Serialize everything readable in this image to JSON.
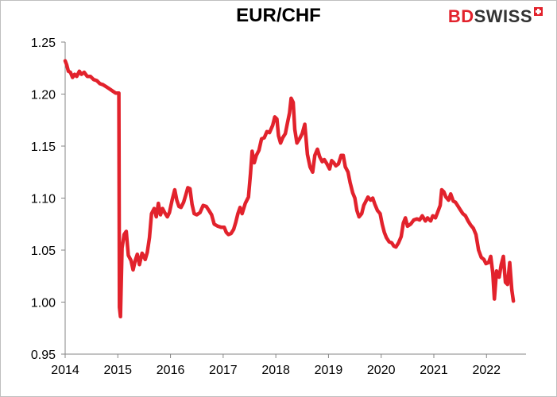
{
  "chart_data": {
    "type": "line",
    "title": "EUR/CHF",
    "xlabel": "",
    "ylabel": "",
    "xlim": [
      2014.0,
      2022.75
    ],
    "ylim": [
      0.95,
      1.25
    ],
    "yticks": [
      "0.95",
      "1.00",
      "1.05",
      "1.10",
      "1.15",
      "1.20",
      "1.25"
    ],
    "xticks": [
      "2014",
      "2015",
      "2016",
      "2017",
      "2018",
      "2019",
      "2020",
      "2021",
      "2022"
    ],
    "grid": false,
    "legend": "none",
    "series": [
      {
        "color": "#e2222c",
        "points": [
          [
            2014.0,
            1.232
          ],
          [
            2014.03,
            1.228
          ],
          [
            2014.06,
            1.222
          ],
          [
            2014.1,
            1.221
          ],
          [
            2014.14,
            1.216
          ],
          [
            2014.18,
            1.219
          ],
          [
            2014.22,
            1.217
          ],
          [
            2014.27,
            1.222
          ],
          [
            2014.31,
            1.219
          ],
          [
            2014.36,
            1.221
          ],
          [
            2014.42,
            1.217
          ],
          [
            2014.48,
            1.217
          ],
          [
            2014.54,
            1.214
          ],
          [
            2014.6,
            1.213
          ],
          [
            2014.66,
            1.21
          ],
          [
            2014.72,
            1.209
          ],
          [
            2014.78,
            1.207
          ],
          [
            2014.84,
            1.205
          ],
          [
            2014.9,
            1.203
          ],
          [
            2014.96,
            1.201
          ],
          [
            2015.02,
            1.201
          ],
          [
            2015.03,
            0.995
          ],
          [
            2015.05,
            0.986
          ],
          [
            2015.08,
            1.052
          ],
          [
            2015.12,
            1.065
          ],
          [
            2015.16,
            1.068
          ],
          [
            2015.2,
            1.045
          ],
          [
            2015.25,
            1.04
          ],
          [
            2015.29,
            1.031
          ],
          [
            2015.33,
            1.04
          ],
          [
            2015.37,
            1.046
          ],
          [
            2015.41,
            1.036
          ],
          [
            2015.46,
            1.047
          ],
          [
            2015.52,
            1.041
          ],
          [
            2015.56,
            1.048
          ],
          [
            2015.6,
            1.062
          ],
          [
            2015.64,
            1.085
          ],
          [
            2015.69,
            1.09
          ],
          [
            2015.73,
            1.082
          ],
          [
            2015.77,
            1.095
          ],
          [
            2015.81,
            1.084
          ],
          [
            2015.85,
            1.09
          ],
          [
            2015.89,
            1.086
          ],
          [
            2015.94,
            1.082
          ],
          [
            2015.98,
            1.086
          ],
          [
            2016.03,
            1.098
          ],
          [
            2016.08,
            1.108
          ],
          [
            2016.12,
            1.098
          ],
          [
            2016.16,
            1.092
          ],
          [
            2016.2,
            1.091
          ],
          [
            2016.25,
            1.096
          ],
          [
            2016.29,
            1.103
          ],
          [
            2016.33,
            1.11
          ],
          [
            2016.37,
            1.109
          ],
          [
            2016.41,
            1.094
          ],
          [
            2016.45,
            1.085
          ],
          [
            2016.5,
            1.084
          ],
          [
            2016.56,
            1.086
          ],
          [
            2016.62,
            1.093
          ],
          [
            2016.68,
            1.092
          ],
          [
            2016.73,
            1.088
          ],
          [
            2016.78,
            1.084
          ],
          [
            2016.83,
            1.075
          ],
          [
            2016.9,
            1.073
          ],
          [
            2016.96,
            1.072
          ],
          [
            2017.02,
            1.072
          ],
          [
            2017.06,
            1.067
          ],
          [
            2017.1,
            1.065
          ],
          [
            2017.15,
            1.066
          ],
          [
            2017.2,
            1.07
          ],
          [
            2017.24,
            1.077
          ],
          [
            2017.28,
            1.085
          ],
          [
            2017.32,
            1.091
          ],
          [
            2017.36,
            1.085
          ],
          [
            2017.42,
            1.095
          ],
          [
            2017.48,
            1.101
          ],
          [
            2017.52,
            1.124
          ],
          [
            2017.55,
            1.145
          ],
          [
            2017.59,
            1.134
          ],
          [
            2017.63,
            1.141
          ],
          [
            2017.68,
            1.146
          ],
          [
            2017.73,
            1.157
          ],
          [
            2017.78,
            1.158
          ],
          [
            2017.83,
            1.164
          ],
          [
            2017.88,
            1.163
          ],
          [
            2017.94,
            1.17
          ],
          [
            2017.98,
            1.178
          ],
          [
            2018.02,
            1.176
          ],
          [
            2018.05,
            1.16
          ],
          [
            2018.09,
            1.153
          ],
          [
            2018.13,
            1.158
          ],
          [
            2018.18,
            1.162
          ],
          [
            2018.22,
            1.172
          ],
          [
            2018.26,
            1.182
          ],
          [
            2018.29,
            1.196
          ],
          [
            2018.33,
            1.192
          ],
          [
            2018.36,
            1.166
          ],
          [
            2018.4,
            1.153
          ],
          [
            2018.45,
            1.157
          ],
          [
            2018.5,
            1.162
          ],
          [
            2018.55,
            1.171
          ],
          [
            2018.6,
            1.142
          ],
          [
            2018.65,
            1.13
          ],
          [
            2018.7,
            1.125
          ],
          [
            2018.74,
            1.141
          ],
          [
            2018.79,
            1.147
          ],
          [
            2018.83,
            1.14
          ],
          [
            2018.88,
            1.135
          ],
          [
            2018.92,
            1.137
          ],
          [
            2018.97,
            1.133
          ],
          [
            2019.02,
            1.128
          ],
          [
            2019.06,
            1.136
          ],
          [
            2019.1,
            1.134
          ],
          [
            2019.14,
            1.131
          ],
          [
            2019.19,
            1.133
          ],
          [
            2019.24,
            1.141
          ],
          [
            2019.28,
            1.141
          ],
          [
            2019.32,
            1.13
          ],
          [
            2019.37,
            1.125
          ],
          [
            2019.41,
            1.115
          ],
          [
            2019.46,
            1.105
          ],
          [
            2019.5,
            1.1
          ],
          [
            2019.54,
            1.088
          ],
          [
            2019.58,
            1.082
          ],
          [
            2019.63,
            1.085
          ],
          [
            2019.67,
            1.093
          ],
          [
            2019.71,
            1.097
          ],
          [
            2019.75,
            1.101
          ],
          [
            2019.8,
            1.098
          ],
          [
            2019.84,
            1.1
          ],
          [
            2019.88,
            1.094
          ],
          [
            2019.93,
            1.088
          ],
          [
            2019.98,
            1.085
          ],
          [
            2020.02,
            1.075
          ],
          [
            2020.06,
            1.067
          ],
          [
            2020.1,
            1.062
          ],
          [
            2020.15,
            1.058
          ],
          [
            2020.2,
            1.057
          ],
          [
            2020.24,
            1.054
          ],
          [
            2020.28,
            1.053
          ],
          [
            2020.33,
            1.057
          ],
          [
            2020.38,
            1.063
          ],
          [
            2020.42,
            1.076
          ],
          [
            2020.46,
            1.081
          ],
          [
            2020.5,
            1.073
          ],
          [
            2020.56,
            1.075
          ],
          [
            2020.62,
            1.079
          ],
          [
            2020.68,
            1.08
          ],
          [
            2020.73,
            1.079
          ],
          [
            2020.78,
            1.083
          ],
          [
            2020.84,
            1.078
          ],
          [
            2020.88,
            1.081
          ],
          [
            2020.94,
            1.078
          ],
          [
            2020.98,
            1.083
          ],
          [
            2021.03,
            1.081
          ],
          [
            2021.07,
            1.086
          ],
          [
            2021.12,
            1.093
          ],
          [
            2021.15,
            1.108
          ],
          [
            2021.19,
            1.106
          ],
          [
            2021.23,
            1.101
          ],
          [
            2021.28,
            1.098
          ],
          [
            2021.32,
            1.104
          ],
          [
            2021.37,
            1.097
          ],
          [
            2021.41,
            1.096
          ],
          [
            2021.45,
            1.093
          ],
          [
            2021.5,
            1.089
          ],
          [
            2021.55,
            1.085
          ],
          [
            2021.6,
            1.083
          ],
          [
            2021.65,
            1.078
          ],
          [
            2021.7,
            1.074
          ],
          [
            2021.75,
            1.071
          ],
          [
            2021.8,
            1.065
          ],
          [
            2021.85,
            1.05
          ],
          [
            2021.9,
            1.043
          ],
          [
            2021.95,
            1.041
          ],
          [
            2021.99,
            1.037
          ],
          [
            2022.04,
            1.038
          ],
          [
            2022.08,
            1.044
          ],
          [
            2022.12,
            1.028
          ],
          [
            2022.15,
            1.003
          ],
          [
            2022.19,
            1.03
          ],
          [
            2022.24,
            1.024
          ],
          [
            2022.28,
            1.036
          ],
          [
            2022.32,
            1.044
          ],
          [
            2022.36,
            1.019
          ],
          [
            2022.4,
            1.017
          ],
          [
            2022.44,
            1.038
          ],
          [
            2022.48,
            1.012
          ],
          [
            2022.51,
            1.001
          ]
        ]
      }
    ]
  },
  "brand": {
    "bd": "BD",
    "swiss": "SWISS",
    "accent": "#e2222c",
    "dark": "#333333"
  }
}
